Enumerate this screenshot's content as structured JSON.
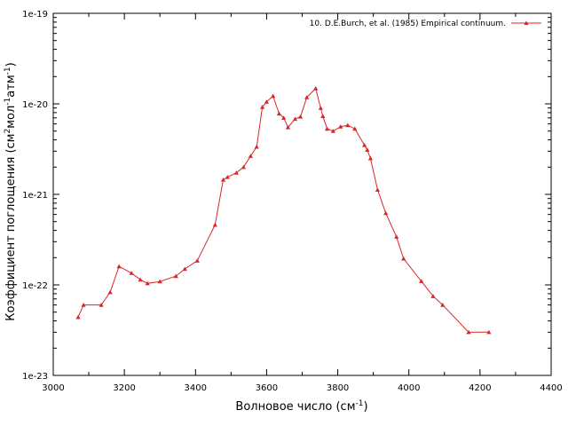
{
  "chart_data": {
    "type": "line",
    "xlabel": "Волновое число (см",
    "xlabel_sup": "-1",
    "xlabel_tail": ")",
    "ylabel": {
      "part1": "Коэффициент поглощения (см",
      "sup1": "2",
      "part2": "мол",
      "sup2": "-1",
      "part3": "атм",
      "sup3": "-1",
      "part4": ")"
    },
    "xlim": [
      3000,
      4400
    ],
    "x_ticks": [
      "3000",
      "3200",
      "3400",
      "3600",
      "3800",
      "4000",
      "4200",
      "4400"
    ],
    "y_scale": "log",
    "ylim": [
      1e-23,
      1e-19
    ],
    "y_ticks": [
      "1e-23",
      "1e-22",
      "1e-21",
      "1e-20",
      "1e-19"
    ],
    "grid": false,
    "legend_position": "top-right",
    "colors": {
      "series": "#d62728"
    },
    "series": [
      {
        "name": "10. D.E.Burch, et al. (1985) Empirical continuum.",
        "marker": "triangle",
        "x": [
          3070,
          3085,
          3135,
          3160,
          3185,
          3220,
          3245,
          3265,
          3300,
          3345,
          3370,
          3405,
          3455,
          3478,
          3490,
          3515,
          3535,
          3555,
          3572,
          3588,
          3600,
          3618,
          3635,
          3648,
          3660,
          3680,
          3695,
          3713,
          3738,
          3752,
          3758,
          3770,
          3787,
          3808,
          3828,
          3848,
          3875,
          3883,
          3892,
          3912,
          3935,
          3965,
          3985,
          4035,
          4068,
          4095,
          4168,
          4225
        ],
        "y": [
          4.4e-23,
          6e-23,
          6e-23,
          8.3e-23,
          1.6e-22,
          1.35e-22,
          1.14e-22,
          1.04e-22,
          1.09e-22,
          1.25e-22,
          1.5e-22,
          1.85e-22,
          4.6e-22,
          1.45e-21,
          1.55e-21,
          1.73e-21,
          2e-21,
          2.65e-21,
          3.35e-21,
          9.2e-21,
          1.05e-20,
          1.22e-20,
          7.8e-21,
          7e-21,
          5.5e-21,
          6.8e-21,
          7.2e-21,
          1.18e-20,
          1.48e-20,
          9e-21,
          7.3e-21,
          5.3e-21,
          5e-21,
          5.6e-21,
          5.8e-21,
          5.3e-21,
          3.5e-21,
          3.1e-21,
          2.5e-21,
          1.12e-21,
          6.2e-22,
          3.4e-22,
          1.95e-22,
          1.1e-22,
          7.5e-23,
          6e-23,
          3e-23,
          3e-23
        ]
      }
    ]
  }
}
